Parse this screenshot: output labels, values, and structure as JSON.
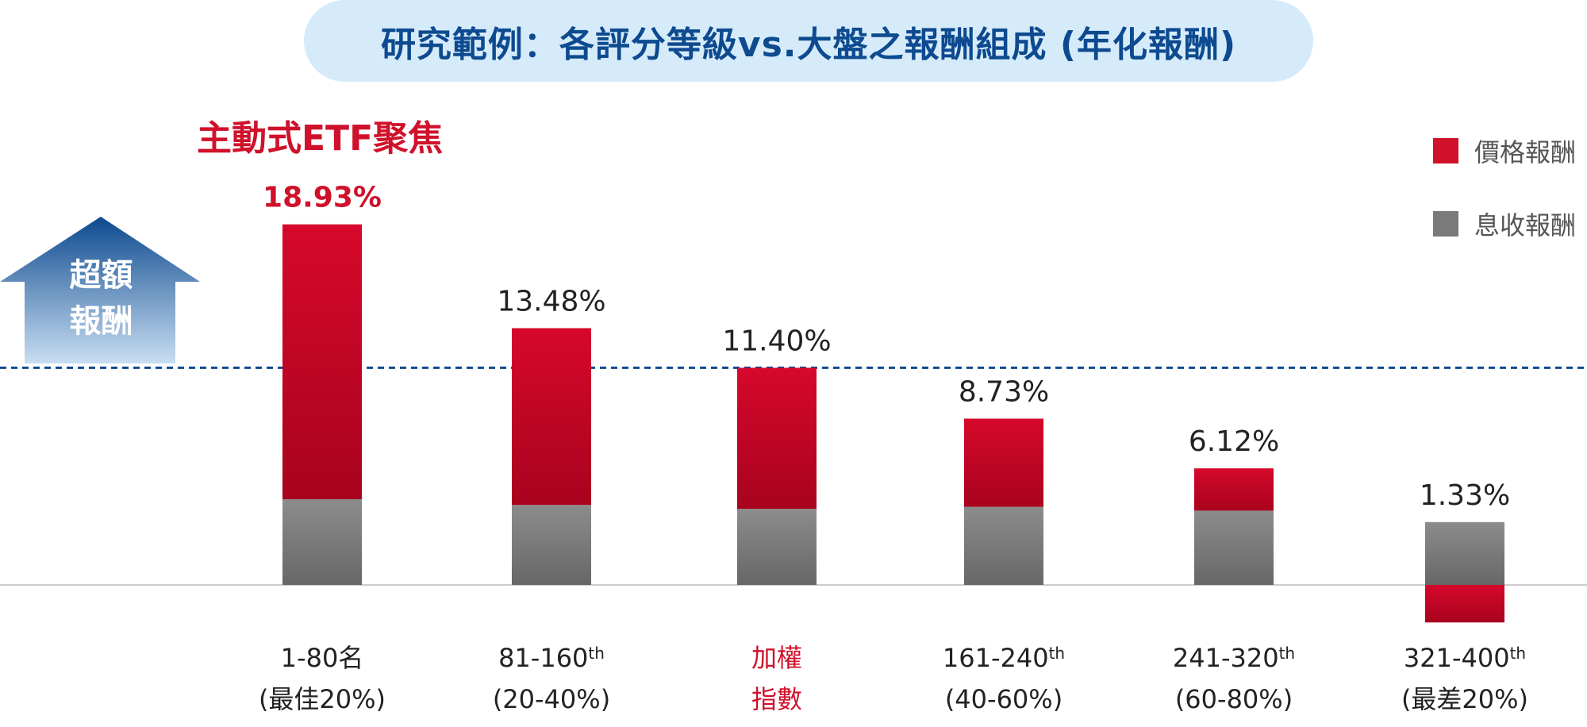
{
  "title": "研究範例：各評分等級vs.大盤之報酬組成 (年化報酬)",
  "focus_label": "主動式ETF聚焦",
  "arrow_label": [
    "超額",
    "報酬"
  ],
  "legend": [
    {
      "label": "價格報酬",
      "color": "#d0112b"
    },
    {
      "label": "息收報酬",
      "color": "#7a7a7a"
    }
  ],
  "colors": {
    "price_top": "#d6082b",
    "price_bottom": "#a8031e",
    "dividend_top": "#8c8c8c",
    "dividend_bottom": "#676767",
    "highlight": "#d0112b",
    "dashed_line": "#0d4a8f",
    "arrow_top": "#0d4a8f",
    "arrow_bottom": "#c9def2",
    "title_bg": "#d6ebfa",
    "baseline": "#cccccc"
  },
  "chart_data": {
    "type": "bar",
    "stacked": true,
    "categories": [
      {
        "line1": "1-80名",
        "line2": "(最佳20%)",
        "highlight": false
      },
      {
        "line1": "81-160",
        "sup": "th",
        "line2": "(20-40%)",
        "highlight": false
      },
      {
        "line1": "加權",
        "line2": "指數",
        "highlight": true
      },
      {
        "line1": "161-240",
        "sup": "th",
        "line2": "(40-60%)",
        "highlight": false
      },
      {
        "line1": "241-320",
        "sup": "th",
        "line2": "(60-80%)",
        "highlight": false
      },
      {
        "line1": "321-400",
        "sup": "th",
        "line2": "(最差20%)",
        "highlight": false
      }
    ],
    "series": [
      {
        "name": "息收報酬",
        "values": [
          4.5,
          4.2,
          4.0,
          4.1,
          3.9,
          3.3
        ]
      },
      {
        "name": "價格報酬",
        "values": [
          14.43,
          9.28,
          7.4,
          4.63,
          2.22,
          -1.97
        ]
      }
    ],
    "totals": [
      "18.93%",
      "13.48%",
      "11.40%",
      "8.73%",
      "6.12%",
      "1.33%"
    ],
    "highlight_total_index": 0,
    "reference_value": 11.4,
    "ylim": [
      -2,
      19
    ],
    "grid": false,
    "legend_position": "top-right"
  }
}
